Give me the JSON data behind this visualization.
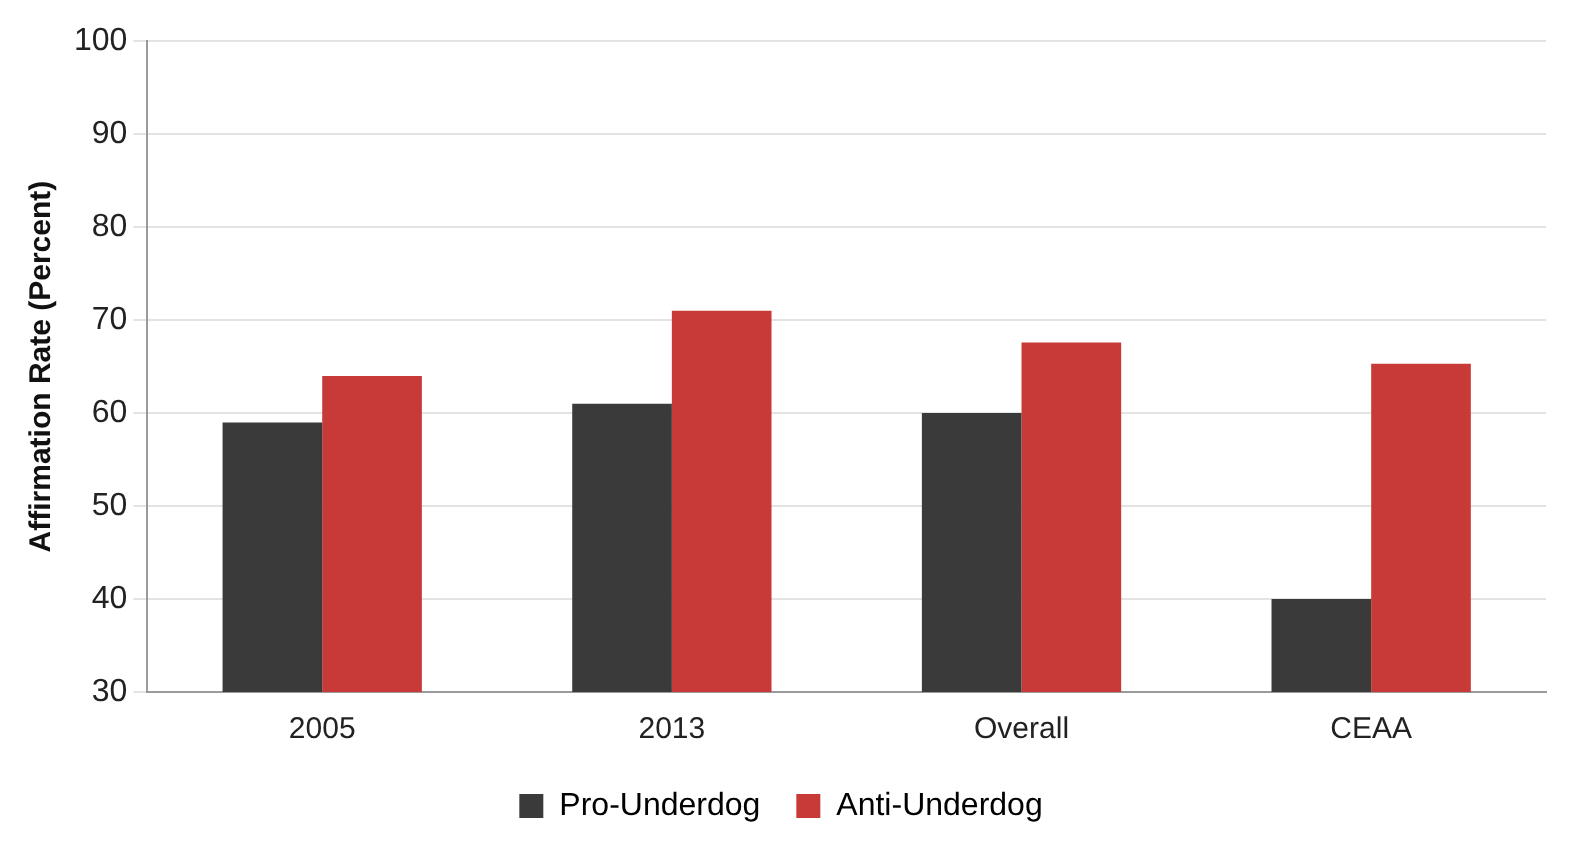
{
  "chart_data": {
    "type": "bar",
    "ylabel": "Affirmation Rate (Percent)",
    "categories": [
      "2005",
      "2013",
      "Overall",
      "CEAA"
    ],
    "series": [
      {
        "name": "Pro-Underdog",
        "color": "#3a3a3a",
        "values": [
          59,
          61,
          60,
          40
        ]
      },
      {
        "name": "Anti-Underdog",
        "color": "#c83a37",
        "values": [
          64,
          71,
          67.6,
          65.3
        ]
      }
    ],
    "ylim": [
      30,
      100
    ],
    "yticks": [
      30,
      40,
      50,
      60,
      70,
      80,
      90,
      100
    ],
    "grid": "y",
    "legend": "bottom"
  }
}
